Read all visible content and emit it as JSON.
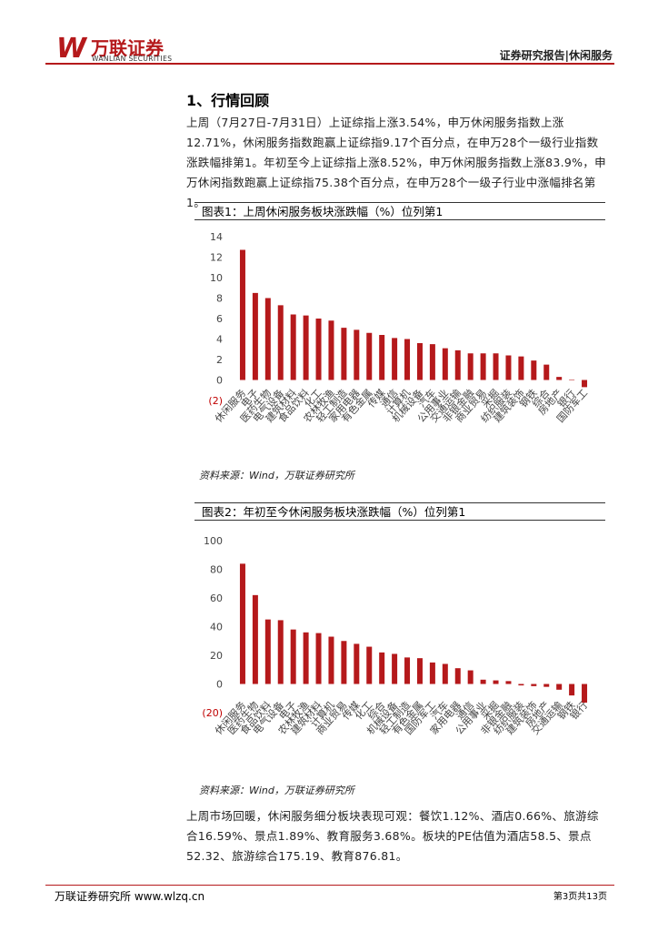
{
  "header": {
    "logo_mark": "W",
    "logo_cn": "万联证券",
    "logo_en": "WANLIAN SECURITIES",
    "right": "证券研究报告|休闲服务"
  },
  "section_title": "1、行情回顾",
  "paragraphs": [
    "上周（7月27日-7月31日）上证综指上涨3.54%，申万休闲服务指数上涨12.71%，休闲服务指数跑赢上证综指9.17个百分点，在申万28个一级行业指数涨跌幅排第1。年初至今上证综指上涨8.52%，申万休闲服务指数上涨83.9%，申万休闲指数跑赢上证综指75.38个百分点，在申万28个一级子行业中涨幅排名第1。",
    "上周市场回暖，休闲服务细分板块表现可观：餐饮1.12%、酒店0.66%、旅游综合16.59%、景点1.89%、教育服务3.68%。板块的PE估值为酒店58.5、景点52.32、旅游综合175.19、教育876.81。"
  ],
  "chart_data": [
    {
      "type": "bar",
      "title": "图表1：上周休闲服务板块涨跌幅（%）位列第1",
      "source": "资料来源：Wind，万联证券研究所",
      "color": "#b5191b",
      "categories": [
        "休闲服务",
        "电子",
        "医药生物",
        "电气设备",
        "建筑材料",
        "食品饮料",
        "化工",
        "农林牧渔",
        "轻工制造",
        "家用电器",
        "有色金属",
        "传媒",
        "通信",
        "计算机",
        "机械设备",
        "汽车",
        "公用事业",
        "交通运输",
        "非银金融",
        "商业贸易",
        "采掘",
        "纺织服装",
        "建筑装饰",
        "钢铁",
        "综合",
        "房地产",
        "银行",
        "国防军工"
      ],
      "values": [
        12.71,
        8.5,
        8.0,
        7.3,
        6.4,
        6.3,
        6.0,
        5.8,
        5.1,
        4.9,
        4.6,
        4.4,
        4.1,
        4.0,
        3.6,
        3.5,
        3.1,
        2.9,
        2.6,
        2.6,
        2.6,
        2.4,
        2.3,
        1.9,
        1.5,
        0.3,
        0.05,
        -0.7
      ],
      "ylim": [
        -2,
        14
      ],
      "yticks": [
        {
          "value": -2,
          "label": "(2)"
        },
        0,
        2,
        4,
        6,
        8,
        10,
        12,
        14
      ]
    },
    {
      "type": "bar",
      "title": "图表2：年初至今休闲服务板块涨跌幅（%）位列第1",
      "source": "资料来源：Wind，万联证券研究所",
      "color": "#b5191b",
      "categories": [
        "休闲服务",
        "医药生物",
        "食品饮料",
        "电气设备",
        "电子",
        "农林牧渔",
        "建筑材料",
        "计算机",
        "商业贸易",
        "传媒",
        "化工",
        "综合",
        "机械设备",
        "轻工制造",
        "有色金属",
        "国防军工",
        "汽车",
        "家用电器",
        "通信",
        "公用事业",
        "采掘",
        "非银金融",
        "纺织服装",
        "建筑装饰",
        "房地产",
        "交通运输",
        "钢铁",
        "银行"
      ],
      "values": [
        83.9,
        62,
        45,
        44.5,
        38,
        36,
        35.5,
        33,
        30,
        28,
        26,
        22,
        21,
        18.5,
        18,
        15,
        14,
        11,
        9.5,
        3,
        2.5,
        2,
        -1,
        -1.5,
        -2,
        -4,
        -8,
        -13
      ],
      "ylim": [
        -20,
        100
      ],
      "yticks": [
        {
          "value": -20,
          "label": "(20)"
        },
        0,
        20,
        40,
        60,
        80,
        100
      ]
    }
  ],
  "footer": {
    "left": "万联证券研究所 www.wlzq.cn",
    "right": "第3页共13页"
  }
}
